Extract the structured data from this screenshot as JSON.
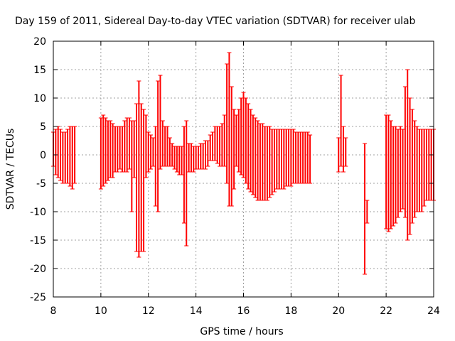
{
  "chart_data": {
    "type": "scatter",
    "title": "Day 159 of 2011, Sidereal Day-to-day VTEC variation (SDTVAR) for receiver ulab",
    "xlabel": "GPS time / hours",
    "ylabel": "SDTVAR / TECUs",
    "xlim": [
      8,
      24
    ],
    "ylim": [
      -25,
      20
    ],
    "xticks": [
      "8",
      "10",
      "12",
      "14",
      "16",
      "18",
      "20",
      "22",
      "24"
    ],
    "yticks": [
      "20",
      "15",
      "10",
      "5",
      "0",
      "-5",
      "-10",
      "-15",
      "-20",
      "-25"
    ],
    "grid": true,
    "series_color": "#ff0000",
    "series": [
      {
        "name": "SDTVAR error bars",
        "x": [
          8.0,
          8.1,
          8.2,
          8.3,
          8.4,
          8.5,
          8.6,
          8.7,
          8.8,
          8.9,
          10.0,
          10.1,
          10.2,
          10.3,
          10.4,
          10.5,
          10.6,
          10.7,
          10.8,
          10.9,
          11.0,
          11.1,
          11.2,
          11.3,
          11.4,
          11.5,
          11.6,
          11.7,
          11.8,
          11.9,
          12.0,
          12.1,
          12.2,
          12.3,
          12.4,
          12.5,
          12.6,
          12.7,
          12.8,
          12.9,
          13.0,
          13.1,
          13.2,
          13.3,
          13.4,
          13.5,
          13.6,
          13.7,
          13.8,
          13.9,
          14.0,
          14.1,
          14.2,
          14.3,
          14.4,
          14.5,
          14.6,
          14.7,
          14.8,
          14.9,
          15.0,
          15.1,
          15.2,
          15.3,
          15.4,
          15.5,
          15.6,
          15.7,
          15.8,
          15.9,
          16.0,
          16.1,
          16.2,
          16.3,
          16.4,
          16.5,
          16.6,
          16.7,
          16.8,
          16.9,
          17.0,
          17.1,
          17.2,
          17.3,
          17.4,
          17.5,
          17.6,
          17.7,
          17.8,
          17.9,
          18.0,
          18.1,
          18.2,
          18.3,
          18.4,
          18.5,
          18.6,
          18.7,
          18.8,
          20.0,
          20.1,
          20.2,
          20.3,
          21.1,
          21.2,
          22.0,
          22.1,
          22.2,
          22.3,
          22.4,
          22.5,
          22.6,
          22.7,
          22.8,
          22.9,
          23.0,
          23.1,
          23.2,
          23.3,
          23.4,
          23.5,
          23.6,
          23.7,
          23.8,
          23.9,
          24.0
        ],
        "y_low": [
          -2,
          -3.5,
          -4,
          -4.5,
          -5,
          -5,
          -5,
          -5.5,
          -6,
          -5,
          -6,
          -5.5,
          -5,
          -4.5,
          -4,
          -4,
          -3,
          -3,
          -2.5,
          -3,
          -3,
          -3,
          -2.5,
          -10,
          -4,
          -17,
          -18,
          -17,
          -17,
          -4,
          -3,
          -2.5,
          -2,
          -9,
          -10,
          -2.5,
          -2,
          -2,
          -2,
          -2,
          -2,
          -2.5,
          -3,
          -3.5,
          -3.5,
          -12,
          -16,
          -3,
          -3,
          -3,
          -2.5,
          -2.5,
          -2.5,
          -2.5,
          -2.5,
          -2,
          -1,
          -1,
          -1,
          -1.5,
          -2,
          -2,
          -2,
          -5,
          -9,
          -9,
          -6,
          -2,
          -3,
          -3.5,
          -4,
          -5,
          -6,
          -6.5,
          -7,
          -7.5,
          -8,
          -8,
          -8,
          -8,
          -8,
          -7.5,
          -7,
          -6.5,
          -6,
          -6,
          -6,
          -6,
          -5.5,
          -5.5,
          -5.5,
          -5,
          -5,
          -5,
          -5,
          -5,
          -5,
          -5,
          -5,
          -3,
          -2,
          -3,
          -2,
          -21,
          -12,
          -13,
          -13.5,
          -13,
          -12.5,
          -12,
          -11,
          -10,
          -9.5,
          -11,
          -15,
          -14,
          -12,
          -11,
          -10,
          -10,
          -10,
          -9,
          -8,
          -8,
          -8,
          -8
        ],
        "y_high": [
          4,
          4.5,
          5,
          4.5,
          4,
          4,
          4.5,
          5,
          5,
          5,
          6.5,
          7,
          6.5,
          6,
          6,
          5.5,
          5,
          5,
          5,
          5,
          6,
          6.5,
          6.5,
          6,
          6,
          9,
          13,
          9,
          8,
          7,
          4,
          3.5,
          3,
          5,
          13,
          14,
          6,
          5,
          5,
          3,
          2,
          1.5,
          1.5,
          1.5,
          1.5,
          5,
          6,
          2,
          2,
          1.5,
          1.5,
          1.5,
          2,
          2,
          2.5,
          2.5,
          3.5,
          4,
          5,
          5,
          5,
          5.5,
          7,
          16,
          18,
          12,
          8,
          7,
          8,
          10,
          11,
          10,
          9,
          8,
          7,
          6.5,
          6,
          5.5,
          5.5,
          5,
          5,
          5,
          4.5,
          4.5,
          4.5,
          4.5,
          4.5,
          4.5,
          4.5,
          4.5,
          4.5,
          4.5,
          4,
          4,
          4,
          4,
          4,
          4,
          3.5,
          3,
          14,
          5,
          3,
          2,
          -8,
          7,
          7,
          6,
          5,
          5,
          4.5,
          5,
          4.5,
          12,
          15,
          10,
          8,
          6,
          5,
          4.5,
          4.5,
          4.5,
          4.5,
          4.5,
          4.5,
          4.5
        ]
      }
    ]
  }
}
